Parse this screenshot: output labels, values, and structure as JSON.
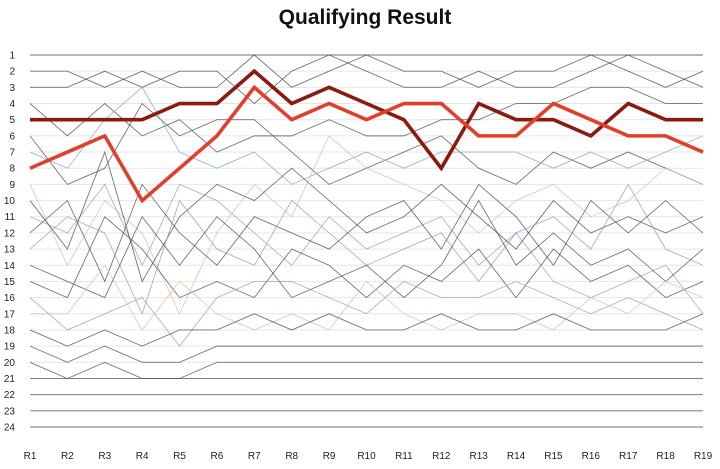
{
  "chart_data": {
    "type": "line",
    "title": "Qualifying Result",
    "xlabel": "",
    "ylabel": "",
    "categories": [
      "R1",
      "R2",
      "R3",
      "R4",
      "R5",
      "R6",
      "R7",
      "R8",
      "R9",
      "R10",
      "R11",
      "R12",
      "R13",
      "R14",
      "R15",
      "R16",
      "R17",
      "R18",
      "R19"
    ],
    "y_ticks": [
      1,
      2,
      3,
      4,
      5,
      6,
      7,
      8,
      9,
      10,
      11,
      12,
      13,
      14,
      15,
      16,
      17,
      18,
      19,
      20,
      21,
      22,
      23,
      24
    ],
    "y_inverted": true,
    "ylim": [
      1,
      24
    ],
    "grid": "horizontal",
    "legend": "none",
    "highlight_series": [
      {
        "color": "#8b1a10",
        "values": [
          5,
          5,
          5,
          5,
          4,
          4,
          2,
          4,
          3,
          4,
          5,
          8,
          4,
          5,
          5,
          6,
          4,
          5,
          5
        ]
      },
      {
        "color": "#e0402a",
        "values": [
          8,
          7,
          6,
          10,
          8,
          6,
          3,
          5,
          4,
          5,
          4,
          4,
          6,
          6,
          4,
          5,
          6,
          6,
          7
        ]
      }
    ],
    "background_series": [
      {
        "color": "#4a4a4a",
        "values": [
          1,
          1,
          1,
          1,
          1,
          1,
          1,
          1,
          1,
          1,
          1,
          1,
          1,
          1,
          1,
          1,
          1,
          1,
          1
        ]
      },
      {
        "color": "#4a4a4a",
        "values": [
          2,
          2,
          3,
          2,
          3,
          3,
          1,
          3,
          2,
          1,
          2,
          2,
          3,
          2,
          2,
          1,
          2,
          3,
          2
        ]
      },
      {
        "color": "#4a4a4a",
        "values": [
          3,
          3,
          2,
          3,
          2,
          2,
          4,
          2,
          1,
          2,
          3,
          3,
          2,
          3,
          3,
          2,
          1,
          2,
          3
        ]
      },
      {
        "color": "#4a4a4a",
        "values": [
          4,
          6,
          4,
          6,
          5,
          7,
          6,
          6,
          5,
          6,
          6,
          5,
          5,
          4,
          4,
          3,
          3,
          4,
          4
        ]
      },
      {
        "color": "#4a4a4a",
        "values": [
          6,
          9,
          8,
          4,
          6,
          5,
          5,
          7,
          9,
          8,
          7,
          6,
          8,
          9,
          7,
          8,
          7,
          8,
          9
        ]
      },
      {
        "color": "#7aa7c7",
        "values": [
          7,
          8,
          5,
          3,
          7,
          8,
          7,
          9,
          8,
          7,
          8,
          7,
          7,
          7,
          8,
          7,
          8,
          7,
          6
        ]
      },
      {
        "color": "#7aa7c7",
        "values": [
          11,
          12,
          9,
          14,
          9,
          10,
          12,
          14,
          11,
          13,
          12,
          11,
          14,
          12,
          15,
          16,
          15,
          14,
          17
        ]
      },
      {
        "color": "#e3b89c",
        "values": [
          9,
          14,
          10,
          12,
          17,
          12,
          9,
          11,
          6,
          8,
          9,
          10,
          12,
          10,
          9,
          11,
          10,
          8,
          9
        ]
      },
      {
        "color": "#4a4a4a",
        "values": [
          10,
          13,
          7,
          15,
          11,
          9,
          10,
          8,
          10,
          12,
          11,
          9,
          11,
          13,
          10,
          12,
          11,
          12,
          11
        ]
      },
      {
        "color": "#4a4a4a",
        "values": [
          12,
          10,
          15,
          9,
          12,
          14,
          11,
          12,
          13,
          11,
          10,
          13,
          9,
          11,
          14,
          10,
          12,
          10,
          12
        ]
      },
      {
        "color": "#9a8fc0",
        "values": [
          13,
          11,
          12,
          17,
          10,
          13,
          14,
          10,
          12,
          14,
          13,
          12,
          15,
          12,
          11,
          13,
          9,
          13,
          14
        ]
      },
      {
        "color": "#4a4a4a",
        "values": [
          14,
          15,
          16,
          11,
          14,
          11,
          13,
          16,
          15,
          14,
          16,
          14,
          10,
          14,
          12,
          14,
          13,
          15,
          13
        ]
      },
      {
        "color": "#4a4a4a",
        "values": [
          15,
          16,
          11,
          13,
          16,
          15,
          16,
          13,
          14,
          16,
          14,
          15,
          13,
          16,
          13,
          15,
          14,
          16,
          15
        ]
      },
      {
        "color": "#7aa7c7",
        "values": [
          16,
          18,
          17,
          16,
          19,
          16,
          15,
          15,
          16,
          17,
          15,
          16,
          16,
          15,
          16,
          17,
          16,
          17,
          18
        ]
      },
      {
        "color": "#e3b89c",
        "values": [
          17,
          17,
          14,
          18,
          15,
          17,
          18,
          17,
          18,
          15,
          17,
          18,
          17,
          17,
          18,
          16,
          17,
          15,
          16
        ]
      },
      {
        "color": "#4a4a4a",
        "values": [
          18,
          19,
          18,
          19,
          18,
          18,
          17,
          18,
          17,
          18,
          18,
          17,
          18,
          18,
          17,
          18,
          18,
          18,
          17
        ]
      },
      {
        "color": "#4a4a4a",
        "values": [
          19,
          20,
          19,
          20,
          20,
          19,
          19,
          19,
          19,
          19,
          19,
          19,
          19,
          19,
          19,
          19,
          19,
          19,
          19
        ]
      },
      {
        "color": "#4a4a4a",
        "values": [
          20,
          21,
          20,
          21,
          21,
          20,
          20,
          20,
          20,
          20,
          20,
          20,
          20,
          20,
          20,
          20,
          20,
          20,
          20
        ]
      },
      {
        "color": "#4a4a4a",
        "values": [
          21,
          21,
          21,
          21,
          21,
          21,
          21,
          21,
          21,
          21,
          21,
          21,
          21,
          21,
          21,
          21,
          21,
          21,
          21
        ]
      },
      {
        "color": "#4a4a4a",
        "values": [
          22,
          22,
          22,
          22,
          22,
          22,
          22,
          22,
          22,
          22,
          22,
          22,
          22,
          22,
          22,
          22,
          22,
          22,
          22
        ]
      },
      {
        "color": "#4a4a4a",
        "values": [
          23,
          23,
          23,
          23,
          23,
          23,
          23,
          23,
          23,
          23,
          23,
          23,
          23,
          23,
          23,
          23,
          23,
          23,
          23
        ]
      },
      {
        "color": "#4a4a4a",
        "values": [
          24,
          24,
          24,
          24,
          24,
          24,
          24,
          24,
          24,
          24,
          24,
          24,
          24,
          24,
          24,
          24,
          24,
          24,
          24
        ]
      }
    ]
  }
}
